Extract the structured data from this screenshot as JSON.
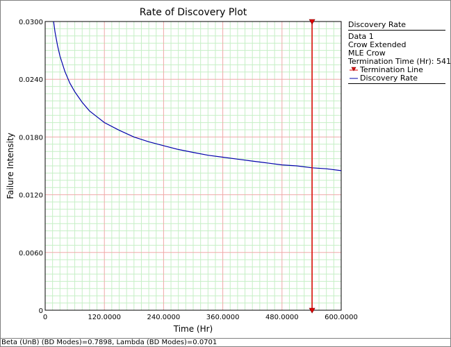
{
  "chart_data": {
    "type": "line",
    "title": "Rate of Discovery Plot",
    "xlabel": "Time (Hr)",
    "ylabel": "Failure Intensity",
    "xlim": [
      0,
      600
    ],
    "ylim": [
      0,
      0.03
    ],
    "x_ticks": [
      "0",
      "120.0000",
      "240.0000",
      "360.0000",
      "480.0000",
      "600.0000"
    ],
    "y_ticks": [
      "0",
      "0.0060",
      "0.0120",
      "0.0180",
      "0.0240",
      "0.0300"
    ],
    "grid": true,
    "legend_position": "right",
    "series": [
      {
        "name": "Discovery Rate",
        "color": "#0000aa",
        "x": [
          17,
          20,
          25,
          30,
          40,
          50,
          60,
          75,
          90,
          105,
          120,
          150,
          180,
          210,
          240,
          270,
          300,
          330,
          360,
          390,
          420,
          450,
          480,
          510,
          541,
          570,
          600
        ],
        "y": [
          0.03,
          0.0289,
          0.0275,
          0.0264,
          0.0248,
          0.0236,
          0.0227,
          0.0216,
          0.0207,
          0.0201,
          0.0195,
          0.0187,
          0.018,
          0.0175,
          0.0171,
          0.0167,
          0.0164,
          0.0161,
          0.0159,
          0.0157,
          0.0155,
          0.0153,
          0.0151,
          0.015,
          0.0148,
          0.0147,
          0.0145
        ]
      }
    ],
    "termination_line": {
      "name": "Termination Line",
      "x": 541,
      "color": "#e00000"
    }
  },
  "legend": {
    "header": "Discovery Rate",
    "lines": [
      "Data 1",
      "Crow Extended",
      "MLE Crow",
      "Termination Time (Hr): 541"
    ],
    "items": [
      {
        "label": "Termination Line",
        "symbol": "termination-marker-icon",
        "color": "#e00000"
      },
      {
        "label": "Discovery Rate",
        "symbol": "line-swatch-icon",
        "color": "#0000aa"
      }
    ]
  },
  "status_bar": {
    "text": "Beta (UnB) (BD Modes)=0.7898, Lambda (BD Modes)=0.0701"
  }
}
